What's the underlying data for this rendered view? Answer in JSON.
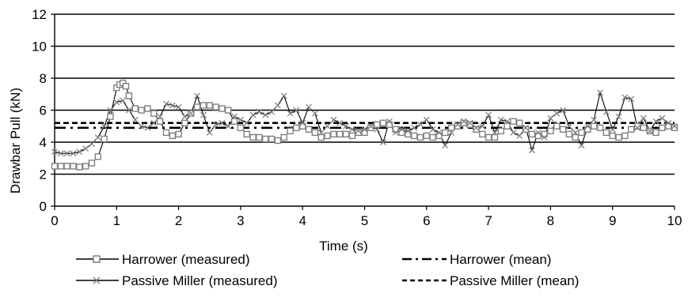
{
  "chart_data": {
    "type": "line",
    "xlabel": "Time (s)",
    "ylabel": "Drawbar Pull (kN)",
    "xlim": [
      0,
      10
    ],
    "ylim": [
      0,
      12
    ],
    "x_ticks": [
      "0",
      "1",
      "2",
      "3",
      "4",
      "5",
      "6",
      "7",
      "8",
      "9",
      "10"
    ],
    "y_ticks": [
      "0",
      "2",
      "4",
      "6",
      "8",
      "10",
      "12"
    ],
    "grid": "horizontal",
    "legend_position": "bottom",
    "series": [
      {
        "name": "Harrower (measured)",
        "style": "solid-square-markers",
        "color": "#808080",
        "x": [
          0,
          0.1,
          0.2,
          0.3,
          0.4,
          0.5,
          0.6,
          0.7,
          0.8,
          0.9,
          1.0,
          1.05,
          1.1,
          1.15,
          1.2,
          1.3,
          1.4,
          1.5,
          1.6,
          1.7,
          1.8,
          1.9,
          2.0,
          2.1,
          2.2,
          2.3,
          2.4,
          2.5,
          2.6,
          2.7,
          2.8,
          2.9,
          3.0,
          3.1,
          3.2,
          3.3,
          3.4,
          3.5,
          3.6,
          3.7,
          3.8,
          3.9,
          4.0,
          4.1,
          4.2,
          4.3,
          4.4,
          4.5,
          4.6,
          4.7,
          4.8,
          4.9,
          5.0,
          5.1,
          5.2,
          5.3,
          5.4,
          5.5,
          5.6,
          5.7,
          5.8,
          5.9,
          6.0,
          6.1,
          6.2,
          6.3,
          6.4,
          6.5,
          6.6,
          6.7,
          6.8,
          6.9,
          7.0,
          7.1,
          7.2,
          7.3,
          7.4,
          7.5,
          7.6,
          7.7,
          7.8,
          7.9,
          8.0,
          8.1,
          8.2,
          8.3,
          8.4,
          8.5,
          8.6,
          8.7,
          8.8,
          8.9,
          9.0,
          9.1,
          9.2,
          9.3,
          9.4,
          9.5,
          9.6,
          9.7,
          9.8,
          9.9,
          10.0
        ],
        "y": [
          2.5,
          2.5,
          2.5,
          2.5,
          2.45,
          2.5,
          2.7,
          3.1,
          4.2,
          5.6,
          7.4,
          7.6,
          7.7,
          7.5,
          6.9,
          6.1,
          6.0,
          6.1,
          5.8,
          5.3,
          4.6,
          4.4,
          4.5,
          5.2,
          5.8,
          6.2,
          6.3,
          6.3,
          6.2,
          6.1,
          6.0,
          5.3,
          4.9,
          4.5,
          4.3,
          4.3,
          4.2,
          4.2,
          4.1,
          4.3,
          4.7,
          4.9,
          5.0,
          4.8,
          4.6,
          4.3,
          4.4,
          4.5,
          4.5,
          4.5,
          4.4,
          4.6,
          4.6,
          4.9,
          5.1,
          5.2,
          5.1,
          4.8,
          4.6,
          4.5,
          4.4,
          4.3,
          4.4,
          4.3,
          4.4,
          4.6,
          4.9,
          5.0,
          5.2,
          5.1,
          4.8,
          4.5,
          4.3,
          4.3,
          4.7,
          5.0,
          5.3,
          5.2,
          4.8,
          4.5,
          4.4,
          4.5,
          4.7,
          5.0,
          4.8,
          4.5,
          4.3,
          4.6,
          4.8,
          5.0,
          4.9,
          4.6,
          4.4,
          4.3,
          4.4,
          4.8,
          5.0,
          4.9,
          4.7,
          4.6,
          4.9,
          5.0,
          4.9
        ]
      },
      {
        "name": "Passive Miller (measured)",
        "style": "solid-x-markers",
        "color": "#808080",
        "x": [
          0,
          0.1,
          0.2,
          0.3,
          0.4,
          0.5,
          0.6,
          0.7,
          0.8,
          0.9,
          1.0,
          1.1,
          1.2,
          1.3,
          1.4,
          1.5,
          1.6,
          1.7,
          1.8,
          1.9,
          2.0,
          2.1,
          2.2,
          2.3,
          2.4,
          2.5,
          2.6,
          2.7,
          2.8,
          2.9,
          3.0,
          3.1,
          3.2,
          3.3,
          3.4,
          3.5,
          3.6,
          3.7,
          3.8,
          3.9,
          4.0,
          4.1,
          4.2,
          4.3,
          4.4,
          4.5,
          4.6,
          4.7,
          4.8,
          4.9,
          5.0,
          5.1,
          5.2,
          5.3,
          5.4,
          5.5,
          5.6,
          5.7,
          5.8,
          5.9,
          6.0,
          6.1,
          6.2,
          6.3,
          6.4,
          6.5,
          6.6,
          6.7,
          6.8,
          6.9,
          7.0,
          7.1,
          7.2,
          7.3,
          7.4,
          7.5,
          7.6,
          7.7,
          7.8,
          7.9,
          8.0,
          8.1,
          8.2,
          8.3,
          8.4,
          8.5,
          8.6,
          8.7,
          8.8,
          8.9,
          9.0,
          9.1,
          9.2,
          9.3,
          9.4,
          9.5,
          9.6,
          9.7,
          9.8,
          9.9,
          10.0
        ],
        "y": [
          3.4,
          3.3,
          3.3,
          3.3,
          3.4,
          3.6,
          3.9,
          4.3,
          5.0,
          6.0,
          6.5,
          6.6,
          6.0,
          5.4,
          5.0,
          4.9,
          5.2,
          5.6,
          6.4,
          6.3,
          6.2,
          5.6,
          5.8,
          6.9,
          5.7,
          4.6,
          5.1,
          5.2,
          5.0,
          5.6,
          5.4,
          5.2,
          5.7,
          5.9,
          5.7,
          5.9,
          6.3,
          6.9,
          5.8,
          6.0,
          5.2,
          6.2,
          5.8,
          4.6,
          5.0,
          5.4,
          5.2,
          5.0,
          4.8,
          4.7,
          4.8,
          5.0,
          4.8,
          4.0,
          5.3,
          4.6,
          4.8,
          4.7,
          4.9,
          5.1,
          5.4,
          4.8,
          4.6,
          3.8,
          4.6,
          5.1,
          5.3,
          5.2,
          4.9,
          5.0,
          5.7,
          4.6,
          5.4,
          5.3,
          4.6,
          4.4,
          4.9,
          3.5,
          4.6,
          4.3,
          5.5,
          5.8,
          6.0,
          5.0,
          4.6,
          3.8,
          5.0,
          5.4,
          7.1,
          5.9,
          4.8,
          5.6,
          6.8,
          6.7,
          4.9,
          5.5,
          4.7,
          5.3,
          5.5,
          5.2,
          5.0
        ]
      },
      {
        "name": "Harrower (mean)",
        "style": "dash-dot",
        "color": "#000000",
        "x": [
          0,
          10
        ],
        "y": [
          4.9,
          4.9
        ]
      },
      {
        "name": "Passive Miller (mean)",
        "style": "dashed",
        "color": "#000000",
        "x": [
          0,
          10
        ],
        "y": [
          5.2,
          5.2
        ]
      }
    ]
  }
}
